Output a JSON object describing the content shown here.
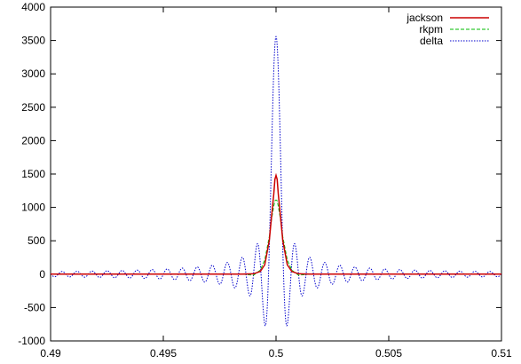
{
  "chart_data": {
    "type": "line",
    "title": "",
    "xlabel": "",
    "ylabel": "",
    "xlim": [
      0.49,
      0.51
    ],
    "ylim": [
      -1000,
      4000
    ],
    "xticks": [
      "0.49",
      "0.495",
      "0.5",
      "0.505",
      "0.51"
    ],
    "yticks": [
      "-1000",
      "-500",
      "0",
      "500",
      "1000",
      "1500",
      "2000",
      "2500",
      "3000",
      "3500",
      "4000"
    ],
    "grid": false,
    "legend_position": "top-right",
    "series": [
      {
        "name": "jackson",
        "color": "#cc0000",
        "style": "solid",
        "x": [
          0.49,
          0.4985,
          0.499,
          0.4993,
          0.4995,
          0.4997,
          0.4998,
          0.4999,
          0.49995,
          0.5,
          0.50005,
          0.5001,
          0.5002,
          0.5003,
          0.5005,
          0.5007,
          0.501,
          0.5015,
          0.51
        ],
        "y": [
          0,
          0,
          5,
          40,
          140,
          500,
          860,
          1200,
          1420,
          1480,
          1420,
          1200,
          860,
          500,
          140,
          40,
          5,
          0,
          0
        ]
      },
      {
        "name": "rkpm",
        "color": "#00bb00",
        "style": "dashed",
        "x": [
          0.49,
          0.4985,
          0.499,
          0.4993,
          0.4995,
          0.4997,
          0.4998,
          0.4999,
          0.49995,
          0.5,
          0.50005,
          0.5001,
          0.5002,
          0.5003,
          0.5005,
          0.5007,
          0.501,
          0.5015,
          0.51
        ],
        "y": [
          0,
          0,
          -15,
          60,
          210,
          560,
          820,
          1020,
          1100,
          1110,
          1100,
          1020,
          820,
          560,
          210,
          60,
          -15,
          0,
          0
        ]
      },
      {
        "name": "delta",
        "color": "#0000cc",
        "style": "dotted",
        "x": [
          0.49,
          0.51
        ],
        "amplitude_at_center": 3560,
        "main_lobe_halfwidth": 0.000333,
        "oscillation_period": 0.000333,
        "sidelobe_min": -800
      }
    ]
  }
}
